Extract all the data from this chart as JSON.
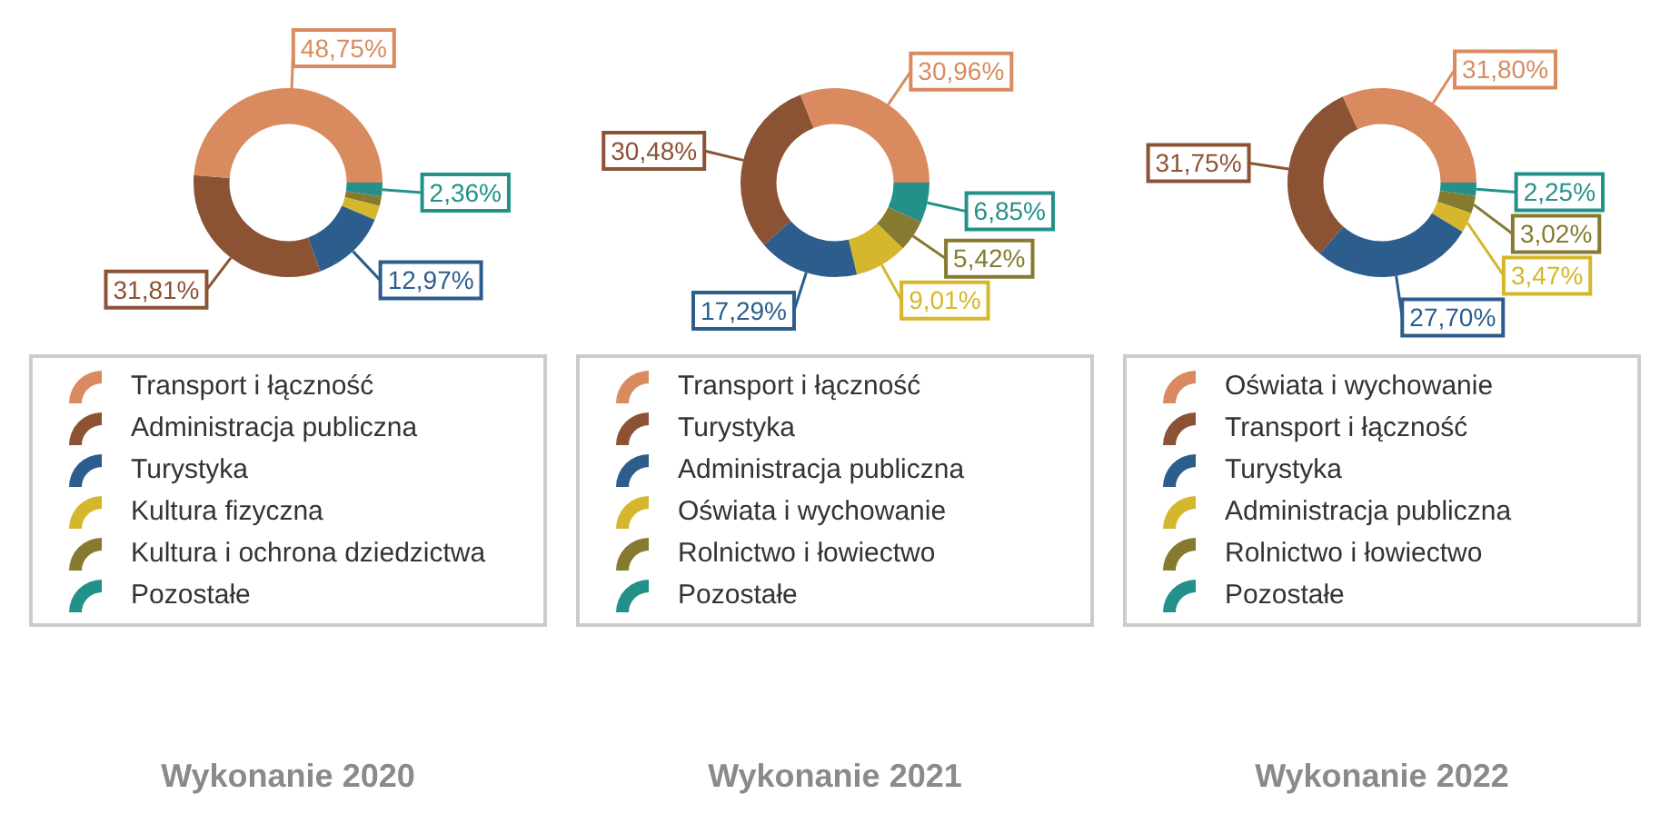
{
  "chart_data": [
    {
      "type": "donut",
      "title": "Wykonanie 2020",
      "legend": "bottom",
      "categories": [
        "Transport i łączność",
        "Administracja publiczna",
        "Turystyka",
        "Kultura fizyczna",
        "Kultura i ochrona dziedzictwa",
        "Pozostałe"
      ],
      "values": [
        48.75,
        31.81,
        12.97,
        2.5,
        1.61,
        2.36
      ],
      "value_labels": [
        "48,75%",
        "31,81%",
        "12,97%",
        null,
        null,
        "2,36%"
      ],
      "colors": [
        "#d98b5f",
        "#8b5234",
        "#2c5d8c",
        "#d4b72c",
        "#857a30",
        "#23918a"
      ]
    },
    {
      "type": "donut",
      "title": "Wykonanie 2021",
      "legend": "bottom",
      "categories": [
        "Transport i łączność",
        "Turystyka",
        "Administracja publiczna",
        "Oświata i wychowanie",
        "Rolnictwo i łowiectwo",
        "Pozostałe"
      ],
      "values": [
        30.96,
        30.48,
        17.29,
        9.01,
        5.42,
        6.85
      ],
      "value_labels": [
        "30,96%",
        "30,48%",
        "17,29%",
        "9,01%",
        "5,42%",
        "6,85%"
      ],
      "colors": [
        "#d98b5f",
        "#8b5234",
        "#2c5d8c",
        "#d4b72c",
        "#857a30",
        "#23918a"
      ]
    },
    {
      "type": "donut",
      "title": "Wykonanie 2022",
      "legend": "bottom",
      "categories": [
        "Oświata i wychowanie",
        "Transport i łączność",
        "Turystyka",
        "Administracja publiczna",
        "Rolnictwo i łowiectwo",
        "Pozostałe"
      ],
      "values": [
        31.8,
        31.75,
        27.7,
        3.47,
        3.02,
        2.25
      ],
      "value_labels": [
        "31,80%",
        "31,75%",
        "27,70%",
        "3,47%",
        "3,02%",
        "2,25%"
      ],
      "colors": [
        "#d98b5f",
        "#8b5234",
        "#2c5d8c",
        "#d4b72c",
        "#857a30",
        "#23918a"
      ]
    }
  ]
}
